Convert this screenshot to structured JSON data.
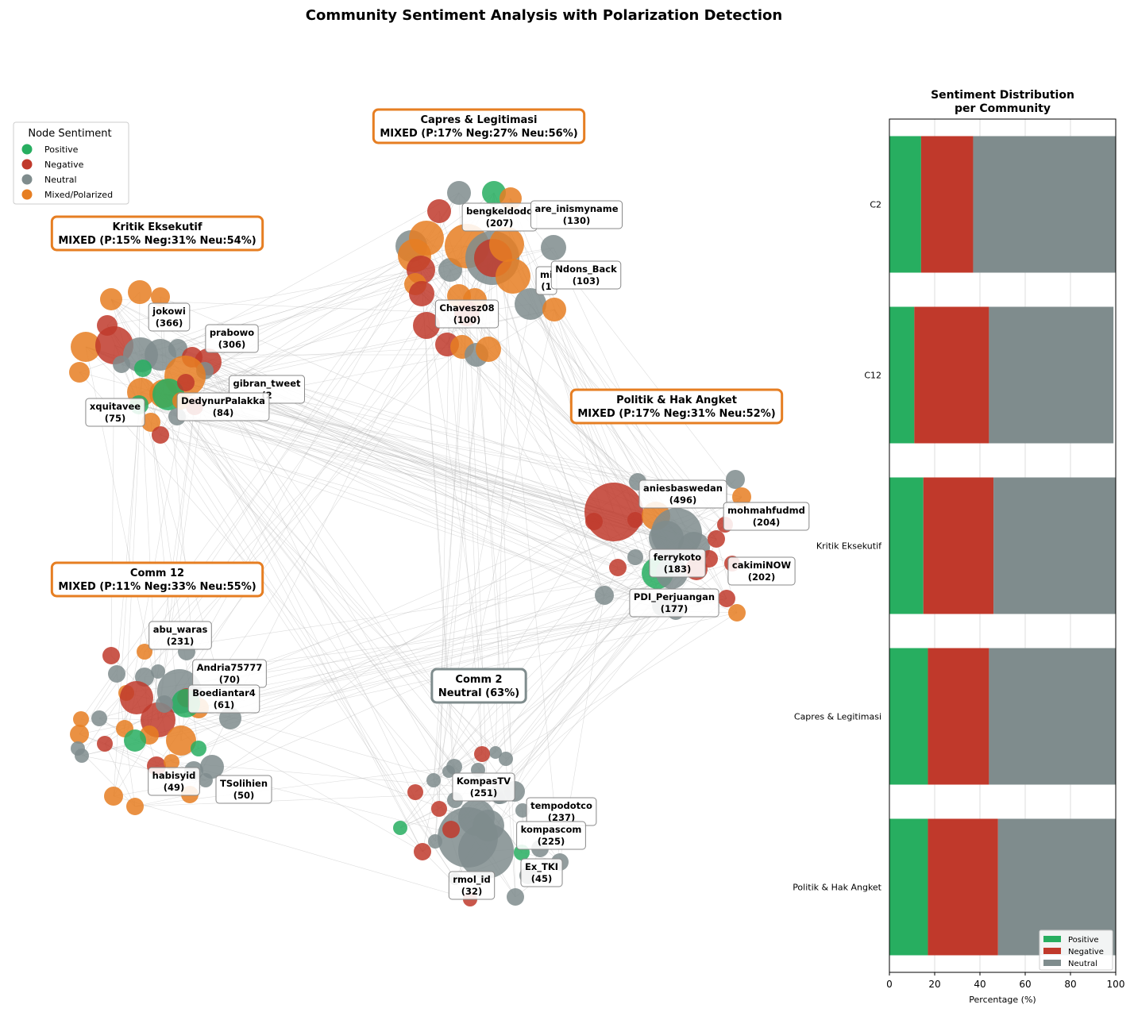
{
  "figure": {
    "title": "Community Sentiment Analysis with Polarization Detection"
  },
  "colors": {
    "positive": "#27ae60",
    "negative": "#c0392b",
    "neutral": "#7f8c8d",
    "mixed": "#e67e22",
    "edge": "#bbbbbb",
    "mixed_box_border": "#e67e22",
    "neutral_box_border": "#7f8c8d"
  },
  "legend": {
    "title": "Node Sentiment",
    "items": [
      {
        "label": "Positive",
        "sentiment": "positive"
      },
      {
        "label": "Negative",
        "sentiment": "negative"
      },
      {
        "label": "Neutral",
        "sentiment": "neutral"
      },
      {
        "label": "Mixed/Polarized",
        "sentiment": "mixed"
      }
    ]
  },
  "community_boxes": [
    {
      "id": "capres",
      "line1": "Capres & Legitimasi",
      "line2": "MIXED (P:17% Neg:27% Neu:56%)",
      "kind": "mixed"
    },
    {
      "id": "kritik",
      "line1": "Kritik Eksekutif",
      "line2": "MIXED (P:15% Neg:31% Neu:54%)",
      "kind": "mixed"
    },
    {
      "id": "politik",
      "line1": "Politik & Hak Angket",
      "line2": "MIXED (P:17% Neg:31% Neu:52%)",
      "kind": "mixed"
    },
    {
      "id": "comm12",
      "line1": "Comm 12",
      "line2": "MIXED (P:11% Neg:33% Neu:55%)",
      "kind": "mixed"
    },
    {
      "id": "comm2",
      "line1": "Comm 2",
      "line2": "Neutral (63%)",
      "kind": "neutral"
    }
  ],
  "node_labels": [
    {
      "community": "capres",
      "name": "bengkeldodo",
      "count": "(207)"
    },
    {
      "community": "capres",
      "name": "are_inismyname",
      "count": "(130)"
    },
    {
      "community": "capres",
      "name": "mi",
      "count": "(1"
    },
    {
      "community": "capres",
      "name": "Ndons_Back",
      "count": "(103)"
    },
    {
      "community": "capres",
      "name": "Chavesz08",
      "count": "(100)"
    },
    {
      "community": "kritik",
      "name": "jokowi",
      "count": "(366)"
    },
    {
      "community": "kritik",
      "name": "prabowo",
      "count": "(306)"
    },
    {
      "community": "kritik",
      "name": "gibran_tweet",
      "count": "(2"
    },
    {
      "community": "kritik",
      "name": "xquitavee",
      "count": "(75)"
    },
    {
      "community": "kritik",
      "name": "DedynurPalakka",
      "count": "(84)"
    },
    {
      "community": "politik",
      "name": "aniesbaswedan",
      "count": "(496)"
    },
    {
      "community": "politik",
      "name": "mohmahfudmd",
      "count": "(204)"
    },
    {
      "community": "politik",
      "name": "ferrykoto",
      "count": "(183)"
    },
    {
      "community": "politik",
      "name": "cakimiNOW",
      "count": "(202)"
    },
    {
      "community": "politik",
      "name": "PDI_Perjuangan",
      "count": "(177)"
    },
    {
      "community": "comm12",
      "name": "abu_waras",
      "count": "(231)"
    },
    {
      "community": "comm12",
      "name": "Andria75777",
      "count": "(70)"
    },
    {
      "community": "comm12",
      "name": "Boediantar4",
      "count": "(61)"
    },
    {
      "community": "comm12",
      "name": "habisyid",
      "count": "(49)"
    },
    {
      "community": "comm12",
      "name": "TSolihien",
      "count": "(50)"
    },
    {
      "community": "comm2",
      "name": "KompasTV",
      "count": "(251)"
    },
    {
      "community": "comm2",
      "name": "tempodotco",
      "count": "(237)"
    },
    {
      "community": "comm2",
      "name": "kompascom",
      "count": "(225)"
    },
    {
      "community": "comm2",
      "name": "Ex_TKI",
      "count": "(45)"
    },
    {
      "community": "comm2",
      "name": "rmol_id",
      "count": "(32)"
    }
  ],
  "chart_data": {
    "type": "bar",
    "orientation": "horizontal",
    "stacked": true,
    "title": "Sentiment Distribution\nper Community",
    "xlabel": "Percentage (%)",
    "ylabel": "",
    "xlim": [
      0,
      100
    ],
    "xticks": [
      0,
      20,
      40,
      60,
      80,
      100
    ],
    "grid": true,
    "legend_position": "lower-right",
    "categories": [
      "C2",
      "C12",
      "Kritik Eksekutif",
      "Capres & Legitimasi",
      "Politik & Hak Angket"
    ],
    "series": [
      {
        "name": "Positive",
        "values": [
          14,
          11,
          15,
          17,
          17
        ]
      },
      {
        "name": "Negative",
        "values": [
          23,
          33,
          31,
          27,
          31
        ]
      },
      {
        "name": "Neutral",
        "values": [
          63,
          55,
          54,
          56,
          52
        ]
      }
    ]
  }
}
